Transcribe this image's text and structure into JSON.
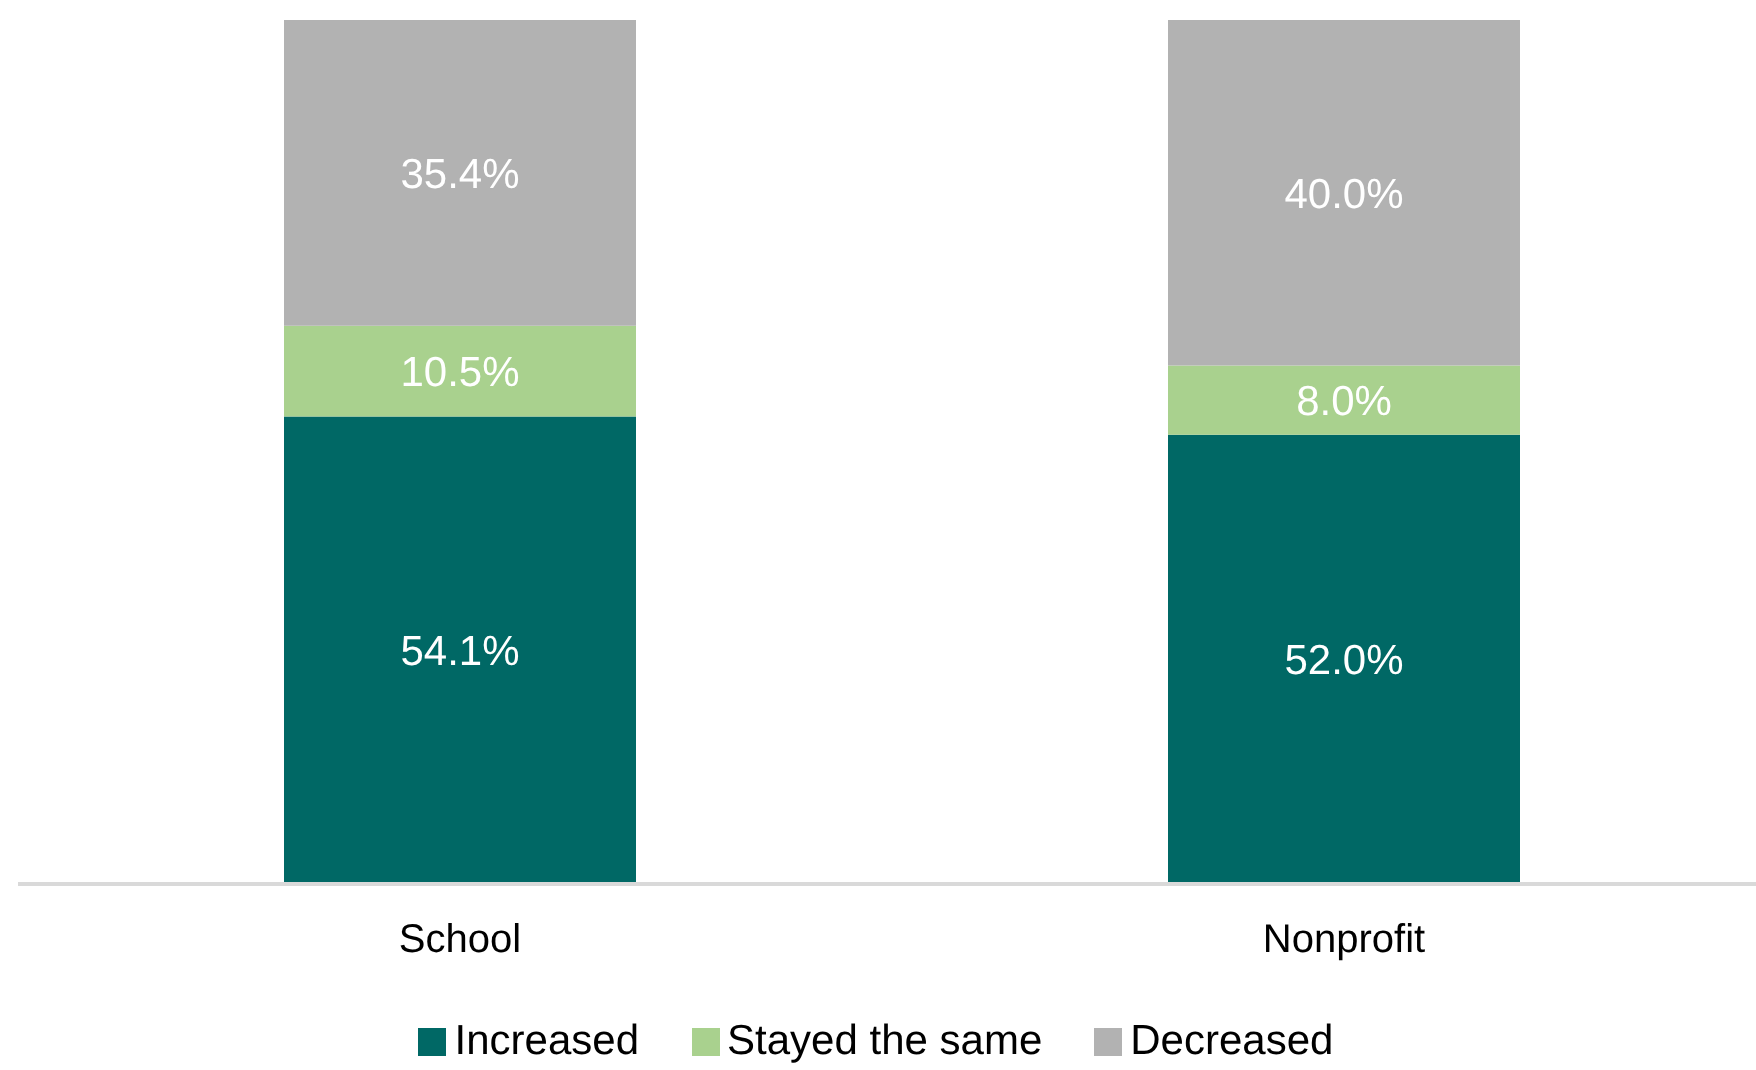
{
  "chart_data": {
    "type": "bar",
    "stacked": true,
    "categories": [
      "School",
      "Nonprofit"
    ],
    "series": [
      {
        "name": "Increased",
        "color": "#006865",
        "values": [
          54.1,
          52.0
        ],
        "value_labels": [
          "54.1%",
          "52.0%"
        ]
      },
      {
        "name": "Stayed the same",
        "color": "#a9d18e",
        "values": [
          10.5,
          8.0
        ],
        "value_labels": [
          "10.5%",
          "8.0%"
        ]
      },
      {
        "name": "Decreased",
        "color": "#b2b2b2",
        "values": [
          35.4,
          40.0
        ],
        "value_labels": [
          "35.4%",
          "40.0%"
        ]
      }
    ],
    "ylim": [
      0,
      100
    ],
    "tick_labels": "x",
    "legend": "bottom"
  }
}
